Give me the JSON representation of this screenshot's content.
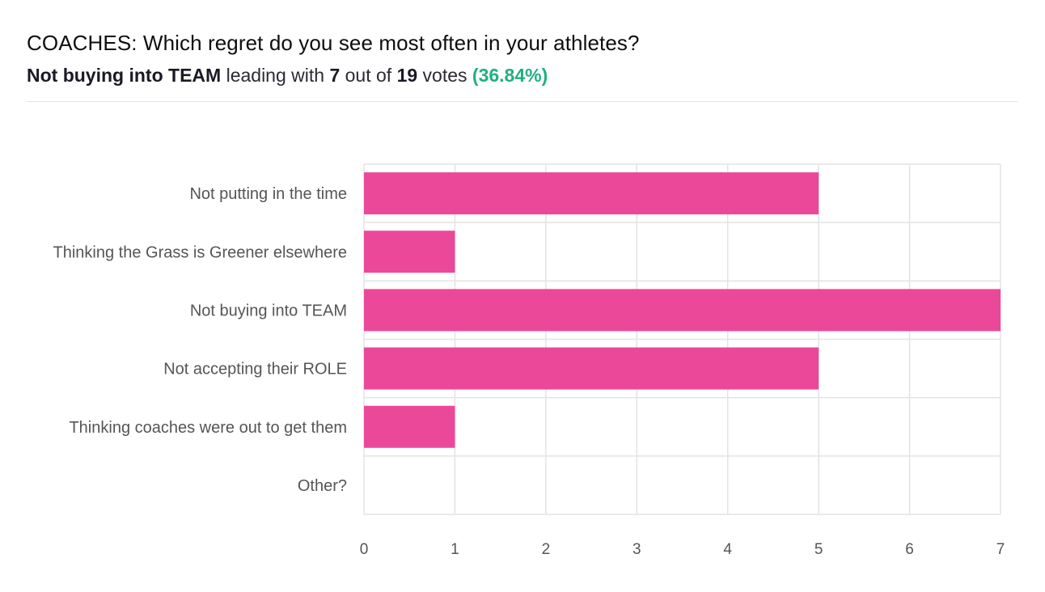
{
  "poll": {
    "title": "COACHES: Which regret do you see most often in your athletes?",
    "leader": "Not buying into TEAM",
    "leading_with_text": "leading with",
    "leader_votes": "7",
    "out_of_text": "out of",
    "total_votes": "19",
    "votes_text": "votes",
    "leader_percent": "(36.84%)"
  },
  "colors": {
    "bar": "#ec4899",
    "grid": "#e3e3e3",
    "label": "#555555",
    "percent": "#20b07f"
  },
  "chart_data": {
    "type": "bar",
    "orientation": "horizontal",
    "categories": [
      "Not putting in the time",
      "Thinking the Grass is Greener elsewhere",
      "Not buying into TEAM",
      "Not accepting their ROLE",
      "Thinking coaches were out to get them",
      "Other?"
    ],
    "values": [
      5,
      1,
      7,
      5,
      1,
      0
    ],
    "xlim": [
      0,
      7
    ],
    "xticks": [
      "0",
      "1",
      "2",
      "3",
      "4",
      "5",
      "6",
      "7"
    ],
    "grid": true,
    "legend": "none"
  }
}
